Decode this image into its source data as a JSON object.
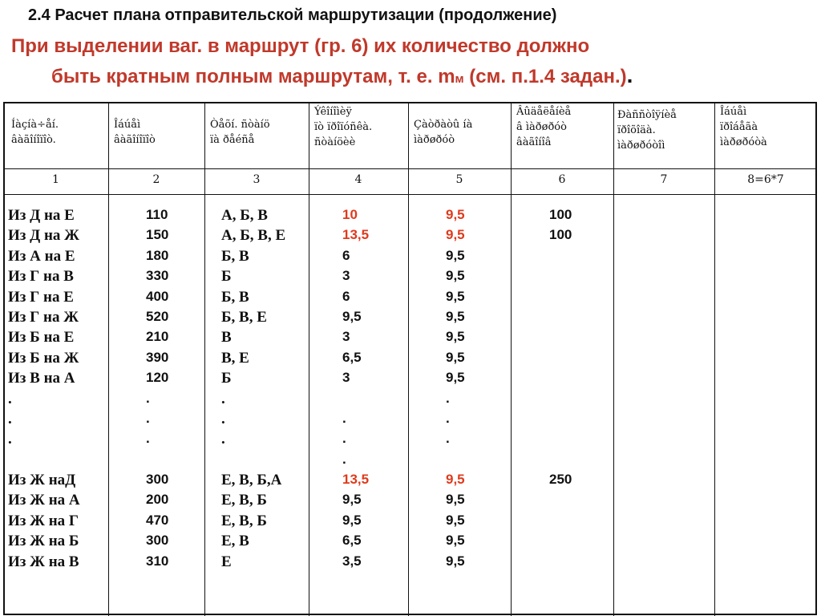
{
  "title": "2.4 Расчет плана отправительской маршрутизации (продолжение)",
  "subtitle": {
    "line1": "При выделении ваг. в маршрут (гр. 6) их количество должно",
    "line2": "быть кратным полным маршрутам, т. е. m",
    "line2_sub": "м",
    "line2_tail": " (см. п.1.4 задан.)",
    "line2_end": "."
  },
  "table": {
    "headers": [
      "Íàçíà÷åí.\nâàãîíîïîò.",
      "Îáúåì\nâàãîíîïîò",
      "Òåõí. ñòàíö\nïà ðåéñå",
      "Ýêîíîìèÿ\nïò ïðîïóñêà.\nñòàíöèè",
      "Çàòðàòû íà\nìàðøðóò",
      "Âûäåëåíèå\nâ ìàðøðóò\nâàãîíîâ",
      "Ðàññòîÿíèå\nïðîõîäà.\nìàðøðóòîì",
      "Îáúåì\nïðîáåãà\nìàðøðóòà"
    ],
    "col_numbers": [
      "1",
      "2",
      "3",
      "4",
      "5",
      "6",
      "7",
      "8=6*7"
    ],
    "col1": [
      "Из Д на Е",
      "Из Д на Ж",
      "Из А на Е",
      "Из Г на В",
      "Из Г на Е",
      "Из Г на Ж",
      "Из Б на Е",
      "Из Б на Ж",
      "Из В на А",
      ".",
      ".",
      ".",
      "",
      "Из Ж наД",
      "Из Ж на А",
      "Из Ж на Г",
      "Из Ж на Б",
      "Из Ж на В"
    ],
    "col2": [
      "110",
      "150",
      "180",
      "330",
      "400",
      "520",
      "210",
      "390",
      "120",
      ".",
      ".",
      ".",
      "",
      "300",
      "200",
      "470",
      "300",
      "310"
    ],
    "col3": [
      "А, Б, В",
      "А, Б, В, Е",
      "Б, В",
      "Б",
      "Б, В",
      "Б, В, Е",
      "В",
      " В, Е",
      "Б",
      ".",
      ".",
      ".",
      "",
      "Е, В, Б,А",
      "Е, В, Б",
      "Е, В, Б",
      "Е, В",
      "Е"
    ],
    "col4": [
      "10",
      "13,5",
      "6",
      "3",
      "6",
      "9,5",
      "3",
      "6,5",
      "3",
      "",
      ".",
      ".",
      ".",
      "13,5",
      "9,5",
      "9,5",
      "6,5",
      "3,5"
    ],
    "col5": [
      "9,5",
      "9,5",
      "9,5",
      "9,5",
      "9,5",
      "9,5",
      "9,5",
      "9,5",
      "9,5",
      ".",
      ".",
      ".",
      "",
      "9,5",
      "9,5",
      "9,5",
      "9,5",
      "9,5"
    ],
    "col6": [
      "100",
      "100",
      "",
      "",
      "",
      "",
      "",
      "",
      "",
      "",
      "",
      "",
      "",
      "250",
      "",
      "",
      "",
      ""
    ],
    "accent_color": "#e03a1c"
  }
}
